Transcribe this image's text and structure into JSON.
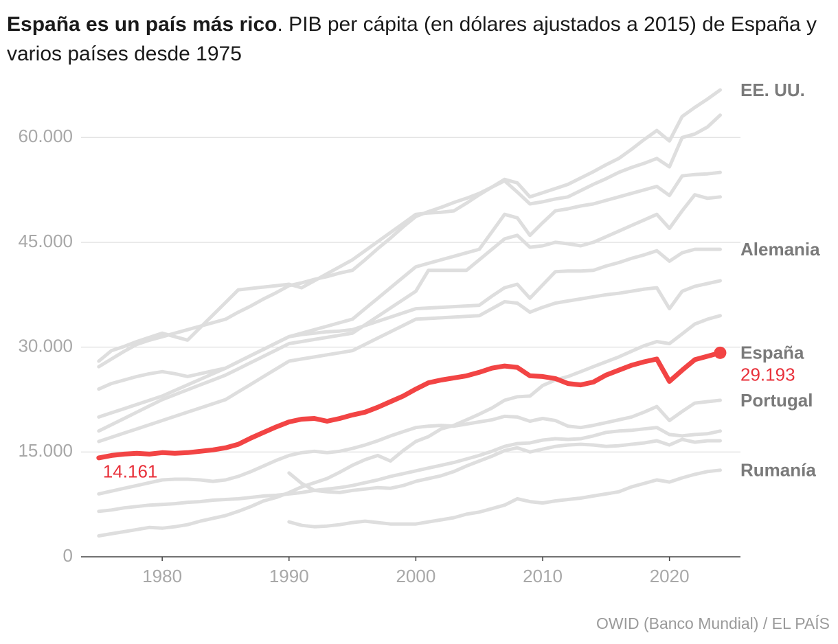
{
  "chart_data": {
    "type": "line",
    "title": "España es un país más rico",
    "subtitle": ". PIB per cápita (en dólares ajustados a 2015) de España y varios países desde 1975",
    "source": "OWID (Banco Mundial) / EL PAÍS",
    "x": [
      1975,
      1976,
      1977,
      1978,
      1979,
      1980,
      1981,
      1982,
      1983,
      1984,
      1985,
      1986,
      1987,
      1988,
      1989,
      1990,
      1991,
      1992,
      1993,
      1994,
      1995,
      1996,
      1997,
      1998,
      1999,
      2000,
      2001,
      2002,
      2003,
      2004,
      2005,
      2006,
      2007,
      2008,
      2009,
      2010,
      2011,
      2012,
      2013,
      2014,
      2015,
      2016,
      2017,
      2018,
      2019,
      2020,
      2021,
      2022,
      2023,
      2024
    ],
    "xlim": [
      1973.6,
      2025.6
    ],
    "xticks": [
      1980,
      1990,
      2000,
      2010,
      2020
    ],
    "ylim": [
      0,
      67000
    ],
    "yticks": [
      0,
      {
        "value": 15000,
        "label": "15.000"
      },
      {
        "value": 30000,
        "label": "30.000"
      },
      {
        "value": 45000,
        "label": "45.000"
      },
      {
        "value": 60000,
        "label": "60.000"
      }
    ],
    "grid": true,
    "series": [
      {
        "name": "EE. UU.",
        "color": "#dedede",
        "values": [
          28000,
          29500,
          30100,
          30800,
          31400,
          32000,
          31500,
          31000,
          32800,
          34600,
          36400,
          38200,
          38400,
          38600,
          38800,
          39000,
          38500,
          39500,
          40500,
          41500,
          42500,
          43800,
          45100,
          46400,
          47700,
          49000,
          49200,
          49300,
          49500,
          50600,
          51800,
          52900,
          54000,
          53500,
          51500,
          52100,
          52700,
          53300,
          54200,
          55100,
          56100,
          57000,
          58300,
          59700,
          61000,
          59500,
          63000,
          64300,
          65500,
          66800
        ]
      },
      {
        "color": "#dedede",
        "values": [
          27200,
          28300,
          29400,
          30400,
          31000,
          31500,
          32000,
          32500,
          33000,
          33500,
          34000,
          35000,
          35900,
          36900,
          37800,
          38800,
          39200,
          39700,
          40100,
          40600,
          41000,
          42500,
          44100,
          45600,
          47200,
          48700,
          49400,
          50000,
          50700,
          51300,
          52000,
          52900,
          53800,
          52200,
          50500,
          50800,
          51200,
          51500,
          52400,
          53300,
          54100,
          55000,
          55700,
          56300,
          57000,
          55800,
          60000,
          60500,
          61500,
          63200
        ]
      },
      {
        "color": "#dedede",
        "values": [
          20000,
          20600,
          21200,
          21800,
          22400,
          23000,
          23800,
          24600,
          25400,
          26200,
          27000,
          27900,
          28800,
          29700,
          30600,
          31500,
          32000,
          32500,
          33000,
          33500,
          34000,
          35500,
          37000,
          38500,
          40000,
          41500,
          42000,
          42500,
          43000,
          43500,
          44000,
          46500,
          49000,
          48500,
          46000,
          47800,
          49500,
          49800,
          50200,
          50500,
          51000,
          51500,
          52000,
          52500,
          53000,
          51700,
          54500,
          54700,
          54800,
          55000
        ]
      },
      {
        "color": "#dedede",
        "values": [
          18000,
          18900,
          19800,
          20700,
          21600,
          22500,
          23200,
          23900,
          24600,
          25300,
          26000,
          26900,
          27800,
          28700,
          29600,
          30500,
          30800,
          31100,
          31400,
          31700,
          32000,
          33200,
          34400,
          35600,
          36800,
          38000,
          41000,
          41000,
          41000,
          41000,
          42500,
          44000,
          45500,
          46000,
          44300,
          44500,
          45000,
          44800,
          44500,
          45000,
          45800,
          46600,
          47400,
          48200,
          49000,
          47000,
          49500,
          51800,
          51300,
          51500
        ]
      },
      {
        "name": "Alemania",
        "color": "#dedede",
        "values": [
          24000,
          24800,
          25300,
          25800,
          26200,
          26500,
          26200,
          25800,
          26200,
          26600,
          27000,
          27900,
          28800,
          29700,
          30600,
          31500,
          31800,
          32000,
          32200,
          32300,
          32500,
          33100,
          33700,
          34300,
          34900,
          35500,
          35600,
          35700,
          35800,
          35900,
          36000,
          37300,
          38500,
          39000,
          37000,
          38900,
          40800,
          40900,
          40900,
          41000,
          41600,
          42100,
          42700,
          43200,
          43800,
          42300,
          43500,
          44000,
          44000,
          44000
        ]
      },
      {
        "color": "#dedede",
        "values": [
          16500,
          17100,
          17700,
          18300,
          18900,
          19500,
          20100,
          20700,
          21300,
          21900,
          22500,
          23600,
          24700,
          25800,
          26900,
          28000,
          28300,
          28600,
          28900,
          29200,
          29500,
          30400,
          31300,
          32200,
          33100,
          34000,
          34100,
          34200,
          34300,
          34400,
          34500,
          35500,
          36500,
          36300,
          35000,
          35700,
          36300,
          36600,
          36900,
          37200,
          37500,
          37700,
          38000,
          38300,
          38500,
          35500,
          38000,
          38700,
          39100,
          39500
        ]
      },
      {
        "color": "#dedede",
        "values": [
          3000,
          3300,
          3600,
          3900,
          4200,
          4100,
          4300,
          4600,
          5100,
          5500,
          5900,
          6500,
          7200,
          8000,
          8500,
          9200,
          10000,
          10600,
          11200,
          12100,
          13100,
          13900,
          14500,
          13700,
          15200,
          16500,
          17200,
          18300,
          18800,
          19600,
          20400,
          21300,
          22400,
          22900,
          23000,
          24500,
          25300,
          25800,
          26500,
          27200,
          27900,
          28600,
          29400,
          30200,
          30800,
          30500,
          31900,
          33300,
          34000,
          34500
        ]
      },
      {
        "name": "Portugal",
        "color": "#dedede",
        "values": [
          9000,
          9400,
          9800,
          10200,
          10600,
          11000,
          11100,
          11100,
          11000,
          10800,
          11000,
          11500,
          12200,
          13000,
          13800,
          14500,
          14900,
          15100,
          14900,
          15100,
          15500,
          16000,
          16600,
          17300,
          17900,
          18500,
          18700,
          18800,
          18700,
          19000,
          19300,
          19600,
          20100,
          20000,
          19400,
          19800,
          19500,
          18700,
          18500,
          18800,
          19200,
          19600,
          20000,
          20700,
          21500,
          19500,
          20800,
          22000,
          22200,
          22400
        ]
      },
      {
        "color": "#dedede",
        "values": [
          6500,
          6700,
          7000,
          7200,
          7400,
          7500,
          7600,
          7800,
          7900,
          8100,
          8200,
          8300,
          8500,
          8700,
          8800,
          9000,
          9200,
          9500,
          9700,
          9900,
          10200,
          10600,
          11000,
          11500,
          11900,
          12300,
          12700,
          13100,
          13500,
          14000,
          14500,
          15100,
          15800,
          16200,
          16300,
          16700,
          16900,
          16800,
          16900,
          17300,
          17800,
          18000,
          18100,
          18300,
          18500,
          17500,
          17300,
          17500,
          17600,
          18000
        ]
      },
      {
        "color": "#dedede",
        "values": [
          null,
          null,
          null,
          null,
          null,
          null,
          null,
          null,
          null,
          null,
          null,
          null,
          null,
          null,
          null,
          12000,
          10500,
          9500,
          9300,
          9200,
          9500,
          9700,
          9900,
          9800,
          10200,
          10800,
          11200,
          11600,
          12200,
          13000,
          13700,
          14400,
          15200,
          15600,
          15000,
          15400,
          15800,
          16000,
          16100,
          16000,
          15800,
          15900,
          16100,
          16300,
          16600,
          16000,
          16800,
          16400,
          16600,
          16600
        ]
      },
      {
        "name": "Rumanía",
        "color": "#dedede",
        "values": [
          null,
          null,
          null,
          null,
          null,
          null,
          null,
          null,
          null,
          null,
          null,
          null,
          null,
          null,
          null,
          5000,
          4500,
          4300,
          4400,
          4600,
          4900,
          5100,
          4900,
          4700,
          4700,
          4700,
          5000,
          5300,
          5600,
          6100,
          6400,
          6900,
          7400,
          8300,
          7900,
          7700,
          8000,
          8200,
          8400,
          8700,
          9000,
          9300,
          10000,
          10500,
          11000,
          10700,
          11300,
          11800,
          12200,
          12400
        ]
      },
      {
        "name": "España",
        "color": "#f24444",
        "values": [
          14161,
          14500,
          14700,
          14800,
          14700,
          14900,
          14800,
          14900,
          15100,
          15300,
          15600,
          16100,
          17000,
          17800,
          18600,
          19300,
          19700,
          19800,
          19400,
          19800,
          20300,
          20700,
          21400,
          22200,
          23000,
          24000,
          24900,
          25300,
          25600,
          25900,
          26400,
          27000,
          27300,
          27100,
          25900,
          25800,
          25500,
          24800,
          24600,
          25000,
          26000,
          26700,
          27400,
          27900,
          28300,
          25100,
          26700,
          28200,
          28700,
          29193
        ],
        "value_labels": [
          "14.161",
          null,
          null,
          null,
          null,
          null,
          null,
          null,
          null,
          null,
          null,
          null,
          null,
          null,
          null,
          null,
          null,
          null,
          null,
          null,
          null,
          null,
          null,
          null,
          null,
          null,
          null,
          null,
          null,
          null,
          null,
          null,
          null,
          null,
          null,
          null,
          null,
          null,
          null,
          null,
          null,
          null,
          null,
          null,
          null,
          null,
          null,
          null,
          null,
          "29.193"
        ]
      }
    ]
  }
}
